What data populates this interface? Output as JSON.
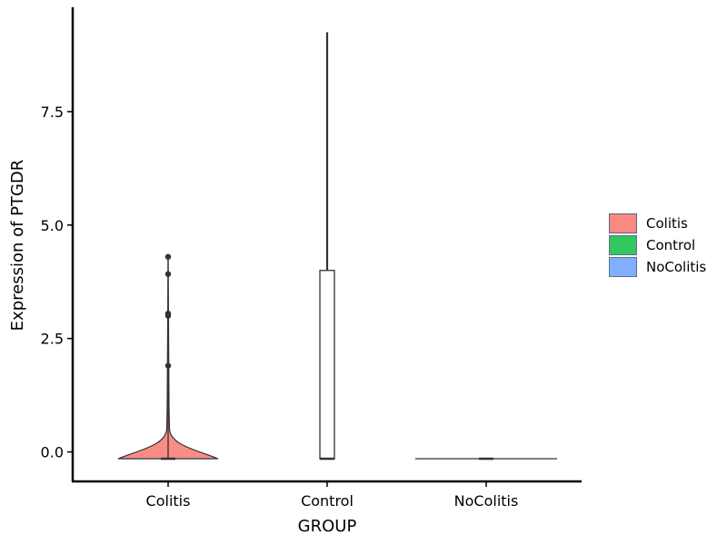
{
  "chart_data": {
    "type": "violin",
    "title": "",
    "xlabel": "GROUP",
    "ylabel": "Expression of PTGDR",
    "categories": [
      "Colitis",
      "Control",
      "NoColitis"
    ],
    "ylim": [
      -0.65,
      9.8
    ],
    "yticks": [
      0.0,
      2.5,
      5.0,
      7.5
    ],
    "ytick_labels": [
      "0.0",
      "2.5",
      "5.0",
      "7.5"
    ],
    "groups": [
      {
        "name": "Colitis",
        "color": "#F8766D",
        "fill": "#FA8D86",
        "violin_max": 4.3,
        "box": {
          "q1": -0.15,
          "median": -0.15,
          "q3": -0.15,
          "whisker_low": -0.15,
          "whisker_high": 0.12
        },
        "outliers": [
          1.9,
          3.0,
          3.05,
          3.92,
          4.3
        ]
      },
      {
        "name": "Control",
        "color": "#00BA38",
        "fill": "#ffffff",
        "violin_max": 9.25,
        "box": {
          "q1": -0.15,
          "median": -0.15,
          "q3": 4.0,
          "whisker_low": -0.15,
          "whisker_high": 9.25
        },
        "outliers": []
      },
      {
        "name": "NoColitis",
        "color": "#619CFF",
        "fill": "#ffffff",
        "violin_max": -0.15,
        "box": {
          "q1": -0.15,
          "median": -0.15,
          "q3": -0.15,
          "whisker_low": -0.15,
          "whisker_high": -0.15
        },
        "outliers": []
      }
    ],
    "legend": {
      "position": "right",
      "items": [
        {
          "label": "Colitis",
          "color": "#F8766D"
        },
        {
          "label": "Control",
          "color": "#00BA38"
        },
        {
          "label": "NoColitis",
          "color": "#619CFF"
        }
      ]
    }
  }
}
